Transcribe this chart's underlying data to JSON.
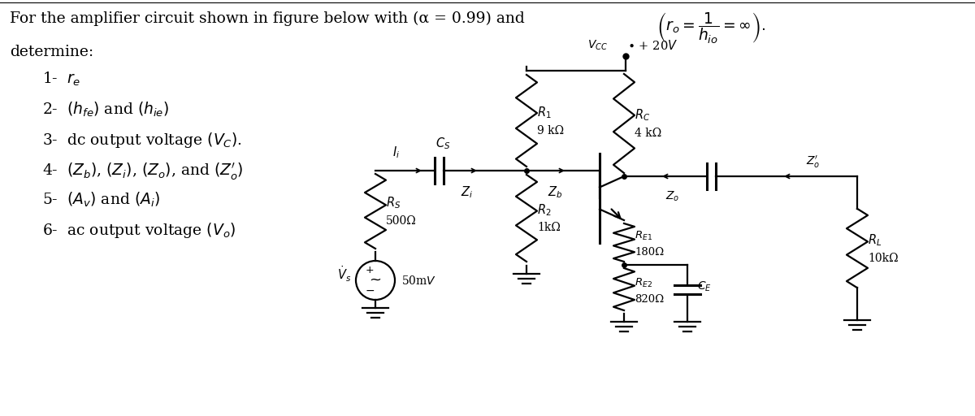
{
  "bg_color": "#ffffff",
  "text_color": "#000000",
  "title": "For the amplifier circuit shown in figure below with (α = 0.99) and ",
  "title_formula": "$\\left(r_o = \\dfrac{1}{h_{io}} = \\infty\\right).$",
  "determine": "determine:",
  "items": [
    "1-  $r_e$",
    "2-  $(h_{fe})$ and $(h_{ie})$",
    "3-  dc output voltage $(V_C)$.",
    "4-  $(Z_b)$, $(Z_i)$, $(Z_o)$, and $(Z_o^{\\prime})$",
    "5-  $(A_v)$ and $(A_i)$",
    "6-  ac output voltage $(V_o)$"
  ],
  "circuit": {
    "Vcc": "+20V",
    "R1": "9 kΩ",
    "R2": "1kΩ",
    "RC": "4 kΩ",
    "RE1": "180Ω",
    "RE2": "820Ω",
    "RS": "500Ω",
    "RL": "10kΩ",
    "Vs": "50mV"
  }
}
